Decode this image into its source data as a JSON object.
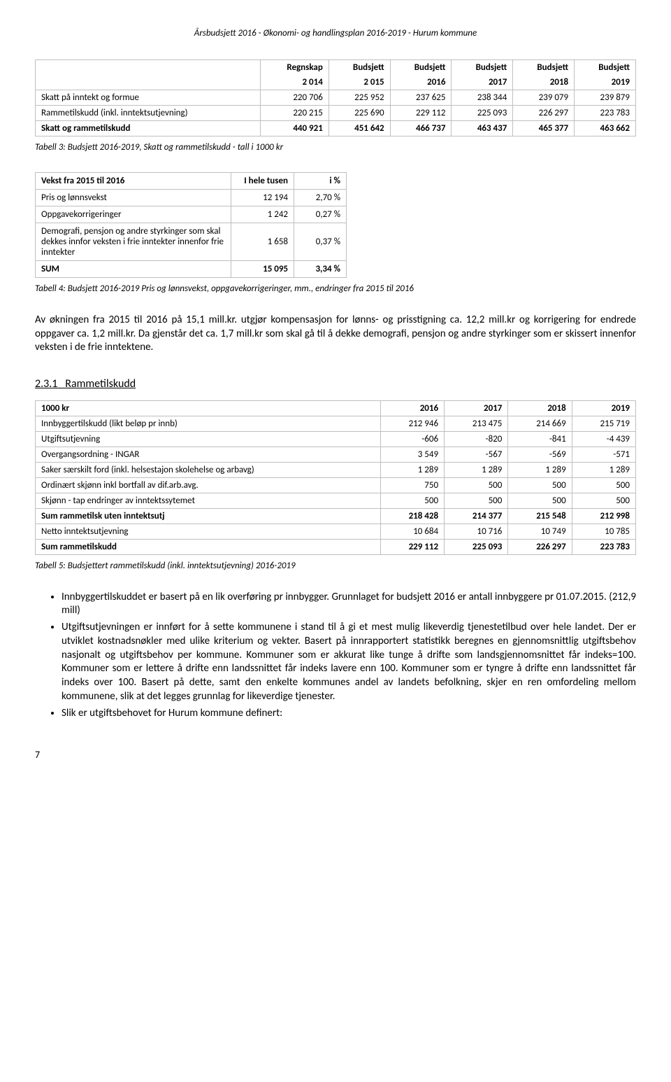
{
  "header": "Årsbudsjett 2016 - Økonomi- og handlingsplan 2016-2019 - Hurum kommune",
  "table1": {
    "head_r1": [
      "",
      "Regnskap",
      "Budsjett",
      "Budsjett",
      "Budsjett",
      "Budsjett",
      "Budsjett"
    ],
    "head_r2": [
      "",
      "2 014",
      "2 015",
      "2016",
      "2017",
      "2018",
      "2019"
    ],
    "rows": [
      [
        "Skatt på inntekt og formue",
        "220 706",
        "225 952",
        "237 625",
        "238 344",
        "239 079",
        "239 879"
      ],
      [
        "Rammetilskudd (inkl. inntektsutjevning)",
        "220 215",
        "225 690",
        "229 112",
        "225 093",
        "226 297",
        "223 783"
      ],
      [
        "Skatt og rammetilskudd",
        "440 921",
        "451 642",
        "466 737",
        "463 437",
        "465 377",
        "463 662"
      ]
    ]
  },
  "caption1": "Tabell 3: Budsjett 2016-2019, Skatt og rammetilskudd - tall i 1000 kr",
  "table2": {
    "head": [
      "Vekst fra 2015 til 2016",
      "I hele tusen",
      "i %"
    ],
    "rows": [
      [
        "Pris og lønnsvekst",
        "12 194",
        "2,70 %"
      ],
      [
        "Oppgavekorrigeringer",
        "1 242",
        "0,27 %"
      ],
      [
        "Demografi, pensjon og andre styrkinger som skal dekkes innfor veksten i frie inntekter innenfor frie inntekter",
        "1 658",
        "0,37 %"
      ],
      [
        "SUM",
        "15 095",
        "3,34 %"
      ]
    ]
  },
  "caption2": "Tabell 4: Budsjett 2016-2019 Pris og lønnsvekst, oppgavekorrigeringer, mm., endringer fra 2015 til 2016",
  "para1": "Av økningen fra 2015 til 2016 på 15,1 mill.kr. utgjør kompensasjon for lønns- og prisstigning ca. 12,2 mill.kr og korrigering for endrede oppgaver ca. 1,2 mill.kr. Da gjenstår det ca. 1,7 mill.kr som skal gå til å dekke demografi, pensjon og andre styrkinger som er skissert innenfor veksten i de frie inntektene.",
  "section_num": "2.3.1",
  "section_title": "Rammetilskudd",
  "table3": {
    "head": [
      "1000 kr",
      "2016",
      "2017",
      "2018",
      "2019"
    ],
    "rows": [
      {
        "cells": [
          "Innbyggertilskudd (likt beløp pr innb)",
          "212 946",
          "213 475",
          "214 669",
          "215 719"
        ],
        "total": false
      },
      {
        "cells": [
          "Utgiftsutjevning",
          "-606",
          "-820",
          "-841",
          "-4 439"
        ],
        "total": false
      },
      {
        "cells": [
          "Overgangsordning - INGAR",
          "3 549",
          "-567",
          "-569",
          "-571"
        ],
        "total": false
      },
      {
        "cells": [
          "Saker særskilt ford (inkl. helsestajon skolehelse og arbavg)",
          "1 289",
          "1 289",
          "1 289",
          "1 289"
        ],
        "total": false
      },
      {
        "cells": [
          "Ordinært skjønn inkl bortfall av dif.arb.avg.",
          "750",
          "500",
          "500",
          "500"
        ],
        "total": false
      },
      {
        "cells": [
          "Skjønn - tap endringer av inntektssytemet",
          "500",
          "500",
          "500",
          "500"
        ],
        "total": false
      },
      {
        "cells": [
          "Sum rammetilsk uten inntektsutj",
          "218 428",
          "214 377",
          "215 548",
          "212 998"
        ],
        "total": true
      },
      {
        "cells": [
          "Netto inntektsutjevning",
          "10 684",
          "10 716",
          "10 749",
          "10 785"
        ],
        "total": false
      },
      {
        "cells": [
          "Sum rammetilskudd",
          "229 112",
          "225 093",
          "226 297",
          "223 783"
        ],
        "total": true
      }
    ]
  },
  "caption3": "Tabell 5: Budsjettert rammetilskudd (inkl. inntektsutjevning) 2016-2019",
  "bullets": [
    "Innbyggertilskuddet er basert på en lik overføring pr innbygger. Grunnlaget for budsjett 2016 er antall innbyggere pr 01.07.2015. (212,9 mill)",
    "Utgiftsutjevningen er innført for å sette kommunene i stand til å gi et mest mulig likeverdig tjenestetilbud over hele landet. Der er utviklet kostnadsnøkler med ulike kriterium og vekter. Basert på innrapportert statistikk beregnes en gjennomsnittlig utgiftsbehov nasjonalt og utgiftsbehov per kommune. Kommuner som er akkurat like tunge å drifte som landsgjennomsnittet får indeks=100. Kommuner som er lettere å drifte enn landssnittet får indeks lavere enn 100. Kommuner som er tyngre å drifte enn landssnittet får indeks over 100. Basert på dette, samt den enkelte kommunes andel av landets befolkning, skjer en ren omfordeling mellom kommunene, slik at det legges grunnlag for likeverdige tjenester.",
    "Slik er utgiftsbehovet for Hurum kommune definert:"
  ],
  "page_number": "7"
}
